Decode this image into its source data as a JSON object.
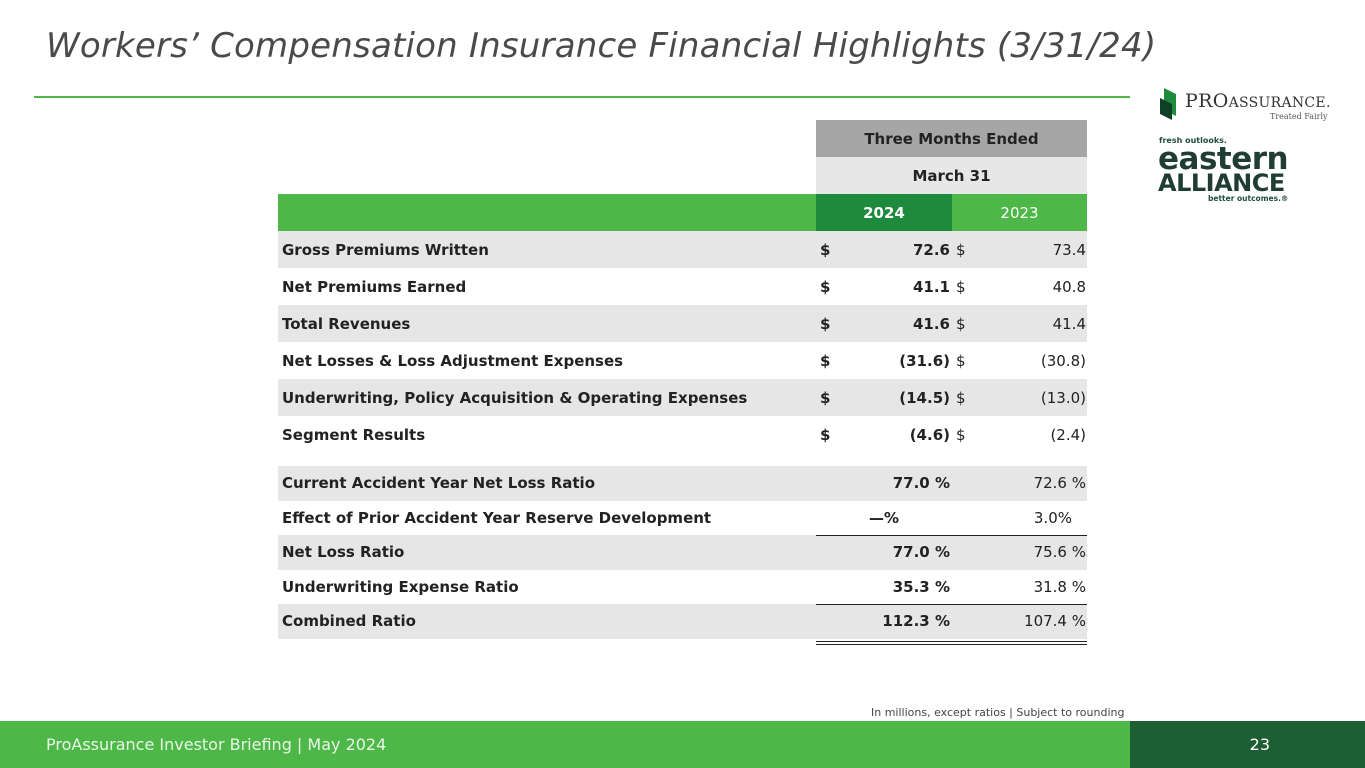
{
  "title": "Workers’ Compensation Insurance Financial Highlights (3/31/24)",
  "logos": {
    "proassurance": {
      "pro": "PRO",
      "assurance": "ASSURANCE",
      "mark": ".",
      "tagline": "Treated Fairly"
    },
    "eastern_alliance": {
      "top": "fresh outlooks.",
      "eastern": "eastern",
      "alliance": "ALLIANCE",
      "bottom": "better outcomes.®"
    }
  },
  "table": {
    "header_period": "Three Months Ended",
    "header_date": "March 31",
    "col_2024": "2024",
    "col_2023": "2023",
    "rows": [
      {
        "label": "Gross Premiums Written",
        "cur1": "$",
        "v2024": "72.6",
        "cur2": "$",
        "v2023": "73.4"
      },
      {
        "label": "Net Premiums Earned",
        "cur1": "$",
        "v2024": "41.1",
        "cur2": "$",
        "v2023": "40.8"
      },
      {
        "label": "Total Revenues",
        "cur1": "$",
        "v2024": "41.6",
        "cur2": "$",
        "v2023": "41.4"
      },
      {
        "label": "Net Losses & Loss Adjustment Expenses",
        "cur1": "$",
        "v2024": "(31.6)",
        "cur2": "$",
        "v2023": "(30.8)"
      },
      {
        "label": "Underwriting, Policy Acquisition & Operating Expenses",
        "cur1": "$",
        "v2024": "(14.5)",
        "cur2": "$",
        "v2023": "(13.0)"
      },
      {
        "label": "Segment Results",
        "cur1": "$",
        "v2024": "(4.6)",
        "cur2": "$",
        "v2023": "(2.4)"
      }
    ],
    "ratios": [
      {
        "label": "Current Accident Year Net Loss Ratio",
        "v2024": "77.0  %",
        "v2023": "72.6  %"
      },
      {
        "label": "Effect of Prior Accident Year Reserve Development",
        "v2024": "—%",
        "v2023": "3.0%"
      },
      {
        "label": "Net Loss Ratio",
        "v2024": "77.0  %",
        "v2023": "75.6  %"
      },
      {
        "label": "Underwriting Expense Ratio",
        "v2024": "35.3  %",
        "v2023": "31.8  %"
      },
      {
        "label": "Combined Ratio",
        "v2024": "112.3  %",
        "v2023": "107.4  %"
      }
    ]
  },
  "note": "In millions, except ratios  |  Subject to rounding",
  "footer": {
    "text": "ProAssurance Investor Briefing | May 2024",
    "page": "23"
  },
  "colors": {
    "green": "#4db848",
    "dark_green": "#1e5e34",
    "accent_green": "#1e8a3c"
  }
}
